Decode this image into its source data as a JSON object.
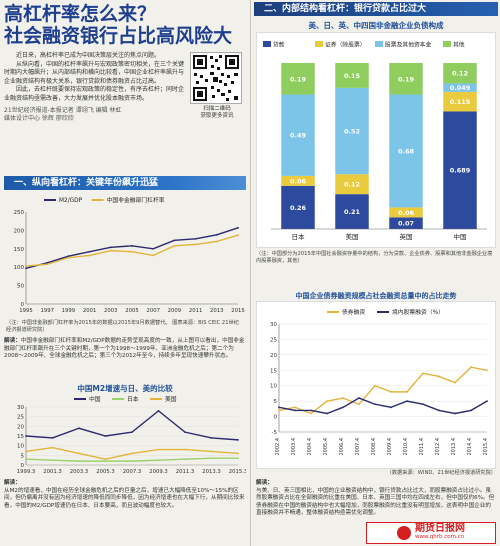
{
  "header": {
    "title_line1": "高杠杆率怎么来？",
    "title_line2": "社会融资银行占比高风险大"
  },
  "intro": {
    "p1": "近日来，高杠杆率已成为中国决策层关注的焦点问题。",
    "p2": "从纵向看，中国的杠杆率飙升与宏观政策密切相关，在三个关键时期内大幅飙升；从内部结构和横向比较看，中国企业杠杆率飙升与企业融资结构有极大关系，银行贷款和债券融资占比过高。",
    "p3": "因此，去杠杆既要保持宏观政策的稳定性，有序去杠杆；同时企业融资结构亟需改善，大力发展并优化股本融资市场。",
    "byline1": "21世纪经济报道-本报记者 谭翊飞 编辑 林虹",
    "byline2": "媒体设计中心 徐辉 廖欣欣",
    "qr_caption_1": "扫描二维码",
    "qr_caption_2": "获取更多资讯"
  },
  "section1": {
    "banner": "一、纵向看杠杆：关键年份飙升迅猛",
    "chart_title": "",
    "note": "（注：中国非金融部门杠杆率为2015年的数据以2015年9月数据替代。 图表来源：BIS CEIC 21世纪经济报道研究院）",
    "analysis_label": "解读：",
    "analysis": "中国非金融部门杠杆率和M2/GDP数据的走势呈现高度的一致，从上图可以看出，中国非金融部门杠杆率飙升在三个关键时期，第一个为1998～1999年、亚洲金融危机之后；第二个为2008～2009年、全球金融危机之后；第三个为2012年至今，持续多年呈现快速攀升状态。"
  },
  "chart1": {
    "chart_data": {
      "type": "line",
      "x": [
        "1995",
        "1997",
        "1999",
        "2001",
        "2003",
        "2005",
        "2007",
        "2009",
        "2011",
        "2013",
        "2015"
      ],
      "series": [
        {
          "name": "M2/GDP",
          "color": "#2b2a6e",
          "values": [
            97,
            112,
            130,
            142,
            154,
            158,
            150,
            173,
            177,
            188,
            207
          ]
        },
        {
          "name": "中国非金融部门杠杆率",
          "color": "#e3b43a",
          "values": [
            103,
            108,
            126,
            132,
            145,
            142,
            132,
            158,
            162,
            170,
            187
          ]
        }
      ],
      "ylim": [
        0,
        250
      ],
      "yticks": [
        0,
        50,
        100,
        150,
        200,
        250
      ],
      "grid": false,
      "legend": "top"
    }
  },
  "chart2": {
    "chart_title": "中国M2增速与日、美的比较",
    "chart_data": {
      "type": "line",
      "x": [
        "1999.3",
        "2001.3",
        "2003.3",
        "2005.3",
        "2007.3",
        "2009.3",
        "2011.3",
        "2013.3",
        "2015.3"
      ],
      "series": [
        {
          "name": "中国",
          "color": "#2b2a6e",
          "values": [
            15,
            14,
            19,
            15,
            17,
            28,
            17,
            14,
            13
          ]
        },
        {
          "name": "日本",
          "color": "#9ccf6c",
          "values": [
            3,
            2.5,
            2,
            2,
            2,
            2.5,
            3,
            3.5,
            3.5
          ]
        },
        {
          "name": "美国",
          "color": "#e3b43a",
          "values": [
            7,
            9,
            6,
            3,
            6,
            8,
            8,
            7,
            6
          ]
        }
      ],
      "ylim": [
        0,
        30
      ],
      "yticks": [
        0,
        5,
        10,
        15,
        20,
        25,
        30
      ],
      "legend": "top"
    },
    "analysis_label": "解读：",
    "analysis": "从M2的增速看，中国在经历全球金融危机之后的巨量之后，增速已大幅降低至10%～15%的区间，但仍偏离并没有因为经济增速的降低而同步降低，因为经济增速也在大幅下行，从期间比较来看，中国的M2/GDP增速仍在日本、日本要高，而且波动幅度也较大。"
  },
  "section2": {
    "banner": "二、内部结构看杠杆：银行贷款占比过大",
    "chart_title": "美、日、英、中四国非金融企业负债构成",
    "note": "（注：中国部分为2015年中国社会融资存量中的结构，分为贷款、企业债券、股票和其他非金融企业境内股票融资，其他）",
    "analysis_label": "解读：",
    "analysis": "与美、日、英三国相比，中国的企业融资结构中，银行贷款占比过大，而股票融资占比过小。虽然股票融资占比在全部融资的比重在美国、日本、英国三国中均在四成左右，但中国仅约6%。但债券融资在中国的融资结构中也大幅增加，而股票融资的比重没有明显增加，这表明中国企业的直接融资并不畅通，整体融资结构亟需优化调整。"
  },
  "chart3": {
    "chart_data": {
      "type": "bar",
      "stacked": true,
      "categories": [
        "日本",
        "美国",
        "英国",
        "中国"
      ],
      "series": [
        {
          "name": "贷款",
          "color": "#2e4a9e",
          "values": [
            0.26,
            0.21,
            0.07,
            0.689
          ]
        },
        {
          "name": "证券（除股票）",
          "color": "#eacb3e",
          "values": [
            0.06,
            0.12,
            0.06,
            0.115
          ]
        },
        {
          "name": "股票及其他资本金",
          "color": "#7cc4e8",
          "values": [
            0.49,
            0.52,
            0.68,
            0.049
          ]
        },
        {
          "name": "其他",
          "color": "#8fce5e",
          "values": [
            0.19,
            0.15,
            0.19,
            0.12
          ]
        }
      ],
      "ylim": [
        0,
        1.0
      ],
      "legend": "top"
    }
  },
  "chart4": {
    "title": "中国企业债券融资规模占社会融资总量中的占比走势",
    "chart_data": {
      "type": "line",
      "x": [
        "2002.4",
        "2003.4",
        "2004.4",
        "2005.4",
        "2006.4",
        "2007.4",
        "2008.4",
        "2009.4",
        "2010.4",
        "2011.4",
        "2012.4",
        "2013.4",
        "2014.4",
        "2015.4"
      ],
      "series": [
        {
          "name": "债券融资",
          "color": "#e3b43a",
          "values": [
            2,
            3,
            1,
            5,
            6,
            4,
            10,
            8,
            8,
            14,
            13,
            11,
            16,
            15
          ]
        },
        {
          "name": "境内股票融资（%）",
          "color": "#2b2a6e",
          "values": [
            3,
            2,
            2,
            1,
            3,
            6,
            4,
            3,
            5,
            4,
            2,
            1,
            2,
            5
          ]
        }
      ],
      "ylim": [
        -5,
        30
      ],
      "yticks": [
        -5,
        0,
        5,
        10,
        15,
        20,
        25,
        30
      ],
      "legend": "top"
    },
    "note": "（数据来源：WIND、21世纪经济报道研究院）"
  },
  "watermark": {
    "text": "期货日报网",
    "url": "www.qhrb.com.cn"
  }
}
